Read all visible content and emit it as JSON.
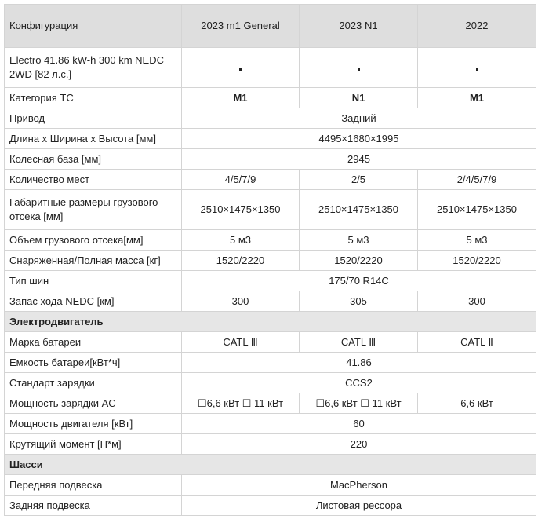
{
  "header": [
    "Конфигурация",
    "2023 m1 General",
    "2023 N1",
    "2022"
  ],
  "rows": [
    {
      "label": "Electro 41.86  kW-h 300 km NEDC 2WD [82 л.с.]"
    },
    {
      "label": "Категория ТС",
      "cells": [
        "M1",
        "N1",
        "M1"
      ],
      "bold": true
    },
    {
      "label": "Привод",
      "cells": [
        "Задний"
      ]
    },
    {
      "label": "Длина x Ширина x Высота [мм]",
      "cells": [
        "4495×1680×1995"
      ]
    },
    {
      "label": "Колесная база [мм]",
      "cells": [
        "2945"
      ]
    },
    {
      "label": "Количество мест",
      "cells": [
        "4/5/7/9",
        "2/5",
        "2/4/5/7/9"
      ]
    },
    {
      "label": "Габаритные размеры грузового отсека [мм]",
      "cells": [
        "2510×1475×1350",
        "2510×1475×1350",
        "2510×1475×1350"
      ]
    },
    {
      "label": "Объем грузового отсека[мм]",
      "cells": [
        "5 м3",
        "5 м3",
        "5 м3"
      ]
    },
    {
      "label": "Снаряженная/Полная масса [кг]",
      "cells": [
        "1520/2220",
        "1520/2220",
        "1520/2220"
      ]
    },
    {
      "label": "Тип шин",
      "cells": [
        "175/70 R14C"
      ]
    },
    {
      "label": "Запас хода NEDC [км]",
      "cells": [
        "300",
        "305",
        "300"
      ]
    },
    {
      "section": "Электродвигатель"
    },
    {
      "label": "Марка батареи",
      "cells": [
        "CATL Ⅲ",
        "CATL Ⅲ",
        "CATL Ⅱ"
      ]
    },
    {
      "label": "Емкость батареи[кВт*ч]",
      "cells": [
        "41.86"
      ]
    },
    {
      "label": "Стандарт зарядки",
      "cells": [
        "CCS2"
      ]
    },
    {
      "label": "Мощность зарядки AC",
      "cells": [
        "☐6,6 кВт ☐ 11 кВт",
        "☐6,6 кВт ☐ 11 кВт",
        "6,6 кВт"
      ]
    },
    {
      "label": "Мощность двигателя [кВт]",
      "cells": [
        "60"
      ]
    },
    {
      "label": "Крутящий момент [Н*м]",
      "cells": [
        "220"
      ]
    },
    {
      "section": "Шасси"
    },
    {
      "label": "Передняя подвеска",
      "cells": [
        "MacPherson"
      ]
    },
    {
      "label": "Задняя подвеска",
      "cells": [
        "Листовая рессора"
      ]
    }
  ]
}
